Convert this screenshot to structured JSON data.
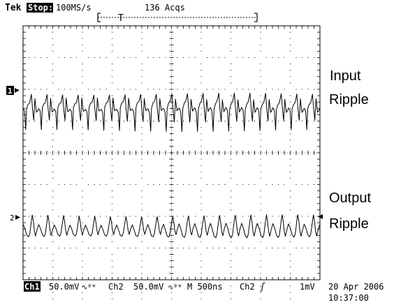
{
  "header": {
    "brand": "Tek",
    "run_state": "Stop:",
    "sample_rate": "100MS/s",
    "acquisitions": "136 Acqs",
    "trigger_marker": "T"
  },
  "channel_markers": {
    "ch1": "1",
    "ch2": "2"
  },
  "annotations": {
    "input_line1": "Input",
    "input_line2": "Ripple",
    "output_line1": "Output",
    "output_line2": "Ripple"
  },
  "footer": {
    "ch1_label": "Ch1",
    "ch1_scale": "50.0mV",
    "ch1_coupling": "∿ᴮᵂ",
    "ch2_label": "Ch2",
    "ch2_scale": "50.0mV",
    "ch2_coupling": "∿ᴮᵂ",
    "timebase": "M 500ns",
    "trigger_source": "Ch2",
    "trigger_slope": "ʃ",
    "trigger_level": "1mV",
    "date": "20 Apr 2006",
    "time": "10:37:00"
  },
  "chart_data": {
    "type": "line",
    "grid": true,
    "grid_divisions": {
      "x": 10,
      "y": 8
    },
    "time_per_division_ns": 500,
    "volts_per_division_mV": 50,
    "series": [
      {
        "name": "Input Ripple",
        "channel": "Ch1",
        "ground_marker_division": 2.7,
        "period_divisions": 0.526,
        "shape_divisions": [
          [
            0.0,
            0.1
          ],
          [
            0.05,
            0.0
          ],
          [
            0.09,
            -0.6
          ],
          [
            0.12,
            0.1
          ],
          [
            0.17,
            0.25
          ],
          [
            0.22,
            0.3
          ],
          [
            0.28,
            0.55
          ],
          [
            0.32,
            0.05
          ],
          [
            0.36,
            -0.3
          ],
          [
            0.4,
            0.4
          ],
          [
            0.45,
            0.0
          ],
          [
            0.49,
            0.05
          ],
          [
            0.526,
            0.1
          ]
        ]
      },
      {
        "name": "Output Ripple",
        "channel": "Ch2",
        "ground_marker_division": 6.3,
        "period_divisions": 0.526,
        "shape_divisions": [
          [
            0.0,
            0.05
          ],
          [
            0.06,
            -0.1
          ],
          [
            0.12,
            -0.3
          ],
          [
            0.18,
            -0.35
          ],
          [
            0.22,
            -0.25
          ],
          [
            0.25,
            -0.05
          ],
          [
            0.28,
            0.15
          ],
          [
            0.31,
            0.32
          ],
          [
            0.35,
            0.1
          ],
          [
            0.38,
            -0.15
          ],
          [
            0.42,
            -0.3
          ],
          [
            0.47,
            -0.1
          ],
          [
            0.526,
            0.05
          ]
        ]
      }
    ]
  }
}
